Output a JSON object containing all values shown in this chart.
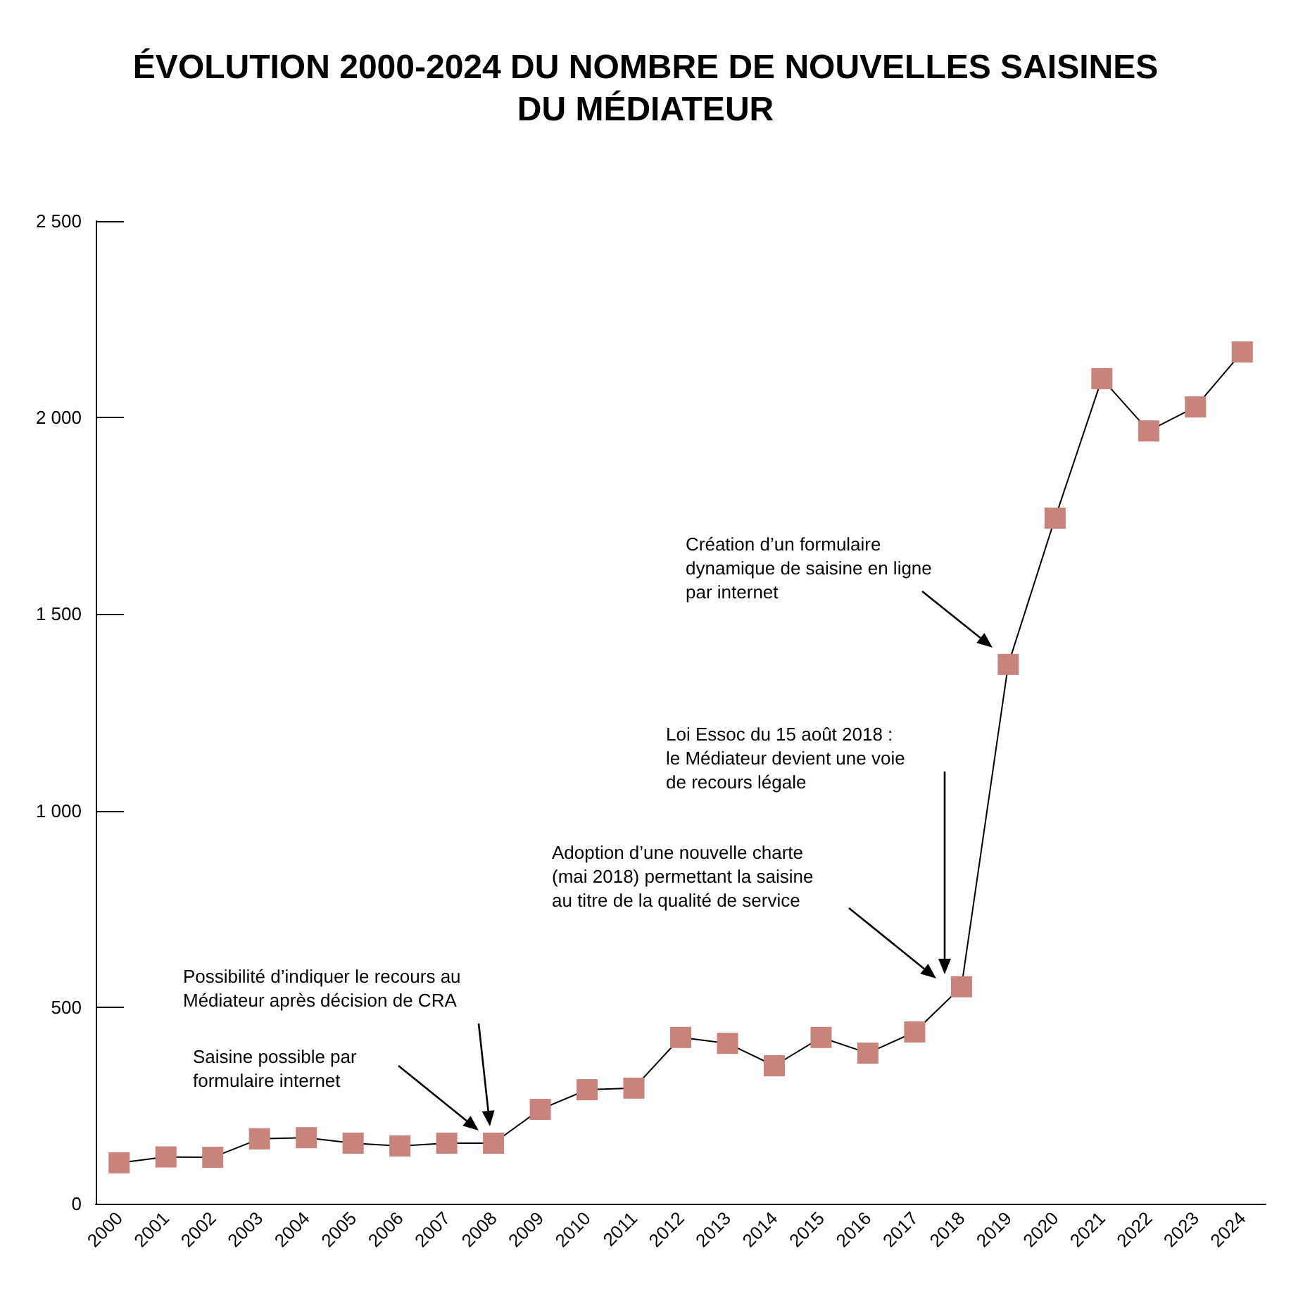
{
  "chart_data": {
    "type": "line",
    "title": "ÉVOLUTION 2000-2024 DU NOMBRE DE NOUVELLES SAISINES\nDU MÉDIATEUR",
    "categories": [
      "2000",
      "2001",
      "2002",
      "2003",
      "2004",
      "2005",
      "2006",
      "2007",
      "2008",
      "2009",
      "2010",
      "2011",
      "2012",
      "2013",
      "2014",
      "2015",
      "2016",
      "2017",
      "2018",
      "2019",
      "2020",
      "2021",
      "2022",
      "2023",
      "2024"
    ],
    "series": [
      {
        "color": "#c9837d",
        "values": [
          104,
          119,
          118,
          165,
          168,
          154,
          147,
          154,
          154,
          240,
          290,
          294,
          423,
          408,
          351,
          423,
          383,
          437,
          552,
          1372,
          1744,
          2099,
          1966,
          2027,
          2167
        ]
      }
    ],
    "ylim": [
      0,
      2500
    ],
    "yticks": [
      0,
      500,
      {
        "value": 1000,
        "label": "1 000"
      },
      {
        "value": 1500,
        "label": "1 500"
      },
      {
        "value": 2000,
        "label": "2 000"
      },
      {
        "value": 2500,
        "label": "2 500"
      }
    ],
    "grid": false,
    "marker": "square",
    "line_style": "solid",
    "annotations": [
      "Saisine possible par\nformulaire internet",
      "Possibilité d’indiquer le recours au\nMédiateur après décision de CRA",
      "Adoption d’une nouvelle charte\n(mai 2018) permettant la saisine\nau titre de la qualité de service",
      "Loi Essoc du 15 août 2018 :\nle Médiateur devient une voie\nde recours légale",
      "Création d’un formulaire\ndynamique de saisine en ligne\npar internet"
    ]
  }
}
